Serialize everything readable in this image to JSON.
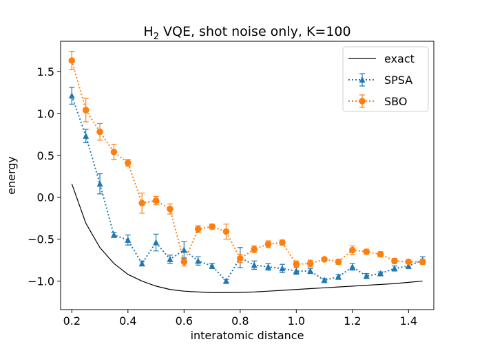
{
  "chart_data": {
    "type": "line",
    "title": {
      "prefix": "H",
      "subscript": "2",
      "suffix": " VQE, shot noise only, K=100"
    },
    "xlabel": "interatomic distance",
    "ylabel": "energy",
    "xlim": [
      0.16,
      1.49
    ],
    "ylim": [
      -1.34,
      1.86
    ],
    "xticks": [
      0.2,
      0.4,
      0.6,
      0.8,
      1.0,
      1.2,
      1.4
    ],
    "xtick_labels": [
      "0.2",
      "0.4",
      "0.6",
      "0.8",
      "1.0",
      "1.2",
      "1.4"
    ],
    "yticks": [
      -1.0,
      -0.5,
      0.0,
      0.5,
      1.0,
      1.5
    ],
    "ytick_labels": [
      "−1.0",
      "−0.5",
      "0.0",
      "0.5",
      "1.0",
      "1.5"
    ],
    "grid": false,
    "legend_position": "top-right",
    "x": [
      0.2,
      0.25,
      0.3,
      0.35,
      0.4,
      0.45,
      0.5,
      0.55,
      0.6,
      0.65,
      0.7,
      0.75,
      0.8,
      0.85,
      0.9,
      0.95,
      1.0,
      1.05,
      1.1,
      1.15,
      1.2,
      1.25,
      1.3,
      1.35,
      1.4,
      1.45
    ],
    "series": [
      {
        "name": "exact",
        "style": "solid",
        "marker": "none",
        "color": "#000000",
        "values": [
          0.16,
          -0.31,
          -0.6,
          -0.79,
          -0.92,
          -1.0,
          -1.06,
          -1.1,
          -1.12,
          -1.13,
          -1.137,
          -1.137,
          -1.135,
          -1.13,
          -1.12,
          -1.11,
          -1.1,
          -1.09,
          -1.08,
          -1.07,
          -1.06,
          -1.05,
          -1.04,
          -1.03,
          -1.015,
          -1.0
        ]
      },
      {
        "name": "SPSA",
        "style": "dotted",
        "marker": "triangle",
        "color": "#1f77b4",
        "values": [
          1.21,
          0.73,
          0.16,
          -0.45,
          -0.51,
          -0.79,
          -0.54,
          -0.74,
          -0.63,
          -0.76,
          -0.82,
          -1.0,
          -0.72,
          -0.81,
          -0.83,
          -0.85,
          -0.88,
          -0.88,
          -0.99,
          -0.95,
          -0.83,
          -0.94,
          -0.91,
          -0.85,
          -0.82,
          -0.75
        ],
        "errors": [
          0.1,
          0.08,
          0.12,
          0.03,
          0.06,
          0.03,
          0.1,
          0.05,
          0.1,
          0.05,
          0.03,
          0.02,
          0.12,
          0.05,
          0.04,
          0.05,
          0.04,
          0.03,
          0.02,
          0.03,
          0.04,
          0.03,
          0.02,
          0.03,
          0.03,
          0.04
        ]
      },
      {
        "name": "SBO",
        "style": "dotted",
        "marker": "circle",
        "color": "#ff7f0e",
        "values": [
          1.63,
          1.04,
          0.78,
          0.54,
          0.41,
          -0.07,
          -0.04,
          -0.14,
          -0.77,
          -0.38,
          -0.35,
          -0.41,
          -0.73,
          -0.62,
          -0.56,
          -0.54,
          -0.8,
          -0.79,
          -0.74,
          -0.77,
          -0.63,
          -0.65,
          -0.68,
          -0.76,
          -0.77,
          -0.77
        ],
        "errors": [
          0.11,
          0.14,
          0.1,
          0.09,
          0.04,
          0.12,
          0.05,
          0.06,
          0.05,
          0.04,
          0.03,
          0.09,
          0.05,
          0.04,
          0.04,
          0.03,
          0.04,
          0.04,
          0.02,
          0.03,
          0.05,
          0.03,
          0.03,
          0.03,
          0.02,
          0.03
        ]
      }
    ]
  }
}
